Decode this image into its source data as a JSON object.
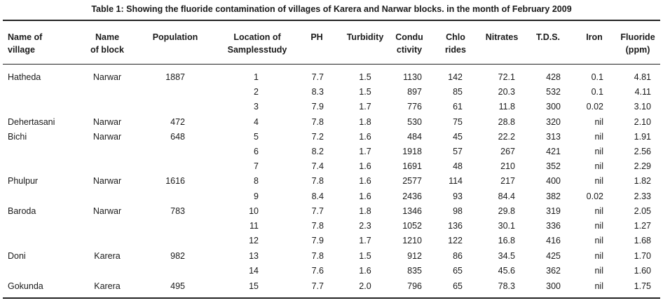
{
  "caption": "Table 1: Showing the fluoride contamination of villages of Karera and Narwar blocks. in the month of February 2009",
  "headers": {
    "village": [
      "Name of",
      "village"
    ],
    "block": [
      "Name",
      "of block"
    ],
    "population": [
      "Population"
    ],
    "location": [
      "Location of",
      "Samplesstudy"
    ],
    "ph": [
      "PH"
    ],
    "turbidity": [
      "Turbidity"
    ],
    "conductivity": [
      "Condu",
      "ctivity"
    ],
    "chlorides": [
      "Chlo",
      "rides"
    ],
    "nitrates": [
      "Nitrates"
    ],
    "tds": [
      "T.D.S."
    ],
    "iron": [
      "Iron"
    ],
    "fluoride": [
      "Fluoride",
      "(ppm)"
    ]
  },
  "rows": [
    {
      "village": "Hatheda",
      "block": "Narwar",
      "population": "1887",
      "location": "1",
      "ph": "7.7",
      "turbidity": "1.5",
      "conductivity": "1130",
      "chlorides": "142",
      "nitrates": "72.1",
      "tds": "428",
      "iron": "0.1",
      "fluoride": "4.81"
    },
    {
      "village": "",
      "block": "",
      "population": "",
      "location": "2",
      "ph": "8.3",
      "turbidity": "1.5",
      "conductivity": "897",
      "chlorides": "85",
      "nitrates": "20.3",
      "tds": "532",
      "iron": "0.1",
      "fluoride": "4.11"
    },
    {
      "village": "",
      "block": "",
      "population": "",
      "location": "3",
      "ph": "7.9",
      "turbidity": "1.7",
      "conductivity": "776",
      "chlorides": "61",
      "nitrates": "11.8",
      "tds": "300",
      "iron": "0.02",
      "fluoride": "3.10"
    },
    {
      "village": "Dehertasani",
      "block": "Narwar",
      "population": "472",
      "location": "4",
      "ph": "7.8",
      "turbidity": "1.8",
      "conductivity": "530",
      "chlorides": "75",
      "nitrates": "28.8",
      "tds": "320",
      "iron": "nil",
      "fluoride": "2.10"
    },
    {
      "village": "Bichi",
      "block": "Narwar",
      "population": "648",
      "location": "5",
      "ph": "7.2",
      "turbidity": "1.6",
      "conductivity": "484",
      "chlorides": "45",
      "nitrates": "22.2",
      "tds": "313",
      "iron": "nil",
      "fluoride": "1.91"
    },
    {
      "village": "",
      "block": "",
      "population": "",
      "location": "6",
      "ph": "8.2",
      "turbidity": "1.7",
      "conductivity": "1918",
      "chlorides": "57",
      "nitrates": "267",
      "tds": "421",
      "iron": "nil",
      "fluoride": "2.56"
    },
    {
      "village": "",
      "block": "",
      "population": "",
      "location": "7",
      "ph": "7.4",
      "turbidity": "1.6",
      "conductivity": "1691",
      "chlorides": "48",
      "nitrates": "210",
      "tds": "352",
      "iron": "nil",
      "fluoride": "2.29"
    },
    {
      "village": "Phulpur",
      "block": "Narwar",
      "population": "1616",
      "location": "8",
      "ph": "7.8",
      "turbidity": "1.6",
      "conductivity": "2577",
      "chlorides": "114",
      "nitrates": "217",
      "tds": "400",
      "iron": "nil",
      "fluoride": "1.82"
    },
    {
      "village": "",
      "block": "",
      "population": "",
      "location": "9",
      "ph": "8.4",
      "turbidity": "1.6",
      "conductivity": "2436",
      "chlorides": "93",
      "nitrates": "84.4",
      "tds": "382",
      "iron": "0.02",
      "fluoride": "2.33"
    },
    {
      "village": "Baroda",
      "block": "Narwar",
      "population": "783",
      "location": "10",
      "ph": "7.7",
      "turbidity": "1.8",
      "conductivity": "1346",
      "chlorides": "98",
      "nitrates": "29.8",
      "tds": "319",
      "iron": "nil",
      "fluoride": "2.05"
    },
    {
      "village": "",
      "block": "",
      "population": "",
      "location": "11",
      "ph": "7.8",
      "turbidity": "2.3",
      "conductivity": "1052",
      "chlorides": "136",
      "nitrates": "30.1",
      "tds": "336",
      "iron": "nil",
      "fluoride": "1.27"
    },
    {
      "village": "",
      "block": "",
      "population": "",
      "location": "12",
      "ph": "7.9",
      "turbidity": "1.7",
      "conductivity": "1210",
      "chlorides": "122",
      "nitrates": "16.8",
      "tds": "416",
      "iron": "nil",
      "fluoride": "1.68"
    },
    {
      "village": "Doni",
      "block": "Karera",
      "population": "982",
      "location": "13",
      "ph": "7.8",
      "turbidity": "1.5",
      "conductivity": "912",
      "chlorides": "86",
      "nitrates": "34.5",
      "tds": "425",
      "iron": "nil",
      "fluoride": "1.70"
    },
    {
      "village": "",
      "block": "",
      "population": "",
      "location": "14",
      "ph": "7.6",
      "turbidity": "1.6",
      "conductivity": "835",
      "chlorides": "65",
      "nitrates": "45.6",
      "tds": "362",
      "iron": "nil",
      "fluoride": "1.60"
    },
    {
      "village": "Gokunda",
      "block": "Karera",
      "population": "495",
      "location": "15",
      "ph": "7.7",
      "turbidity": "2.0",
      "conductivity": "796",
      "chlorides": "65",
      "nitrates": "78.3",
      "tds": "300",
      "iron": "nil",
      "fluoride": "1.75"
    }
  ]
}
